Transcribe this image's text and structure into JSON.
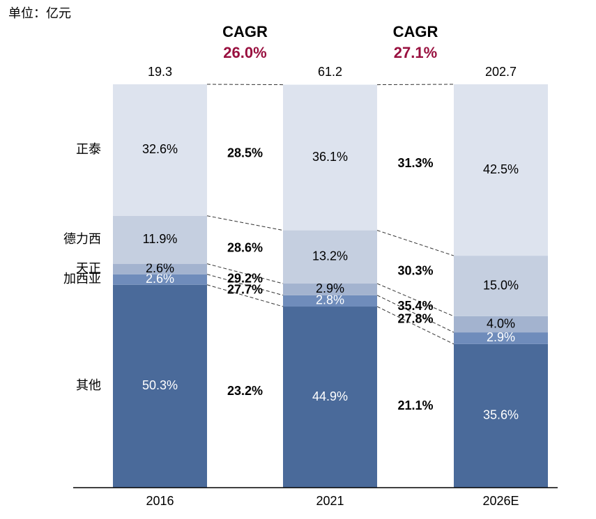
{
  "chart_data": {
    "type": "stacked_bar_100",
    "unit_label": "单位：亿元",
    "categories": [
      "2016",
      "2021",
      "2026E"
    ],
    "totals": [
      19.3,
      61.2,
      202.7
    ],
    "series": [
      {
        "name": "其他",
        "color": "#4a6a9a",
        "values": [
          50.3,
          44.9,
          35.6
        ],
        "value_labels": [
          "50.3%",
          "44.9%",
          "35.6%"
        ],
        "cagr": [
          23.2,
          21.1
        ],
        "cagr_labels": [
          "23.2%",
          "21.1%"
        ]
      },
      {
        "name": "加西亚",
        "color": "#6f8cbb",
        "values": [
          2.6,
          2.8,
          2.9
        ],
        "value_labels": [
          "2.6%",
          "2.8%",
          "2.9%"
        ],
        "cagr": [
          27.7,
          27.8
        ],
        "cagr_labels": [
          "27.7%",
          "27.8%"
        ]
      },
      {
        "name": "天正",
        "color": "#a3b3cf",
        "values": [
          2.6,
          2.9,
          4.0
        ],
        "value_labels": [
          "2.6%",
          "2.9%",
          "4.0%"
        ],
        "cagr": [
          29.2,
          35.4
        ],
        "cagr_labels": [
          "29.2%",
          "35.4%"
        ]
      },
      {
        "name": "德力西",
        "color": "#c5cfe0",
        "values": [
          11.9,
          13.2,
          15.0
        ],
        "value_labels": [
          "11.9%",
          "13.2%",
          "15.0%"
        ],
        "cagr": [
          28.6,
          30.3
        ],
        "cagr_labels": [
          "28.6%",
          "30.3%"
        ]
      },
      {
        "name": "正泰",
        "color": "#dde3ee",
        "values": [
          32.6,
          36.1,
          42.5
        ],
        "value_labels": [
          "32.6%",
          "36.1%",
          "42.5%"
        ],
        "cagr": [
          28.5,
          31.3
        ],
        "cagr_labels": [
          "28.5%",
          "31.3%"
        ]
      }
    ],
    "cagr_title": "CAGR",
    "cagr_total": [
      26.0,
      27.1
    ],
    "cagr_total_labels": [
      "26.0%",
      "27.1%"
    ],
    "ylim": [
      0,
      100
    ]
  }
}
